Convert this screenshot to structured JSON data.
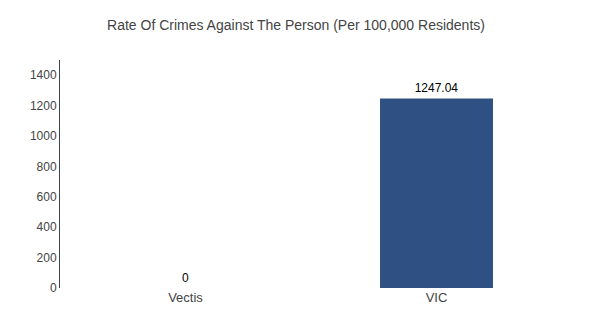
{
  "chart_data": {
    "type": "bar",
    "title": "Rate Of Crimes Against The Person (Per 100,000 Residents)",
    "categories": [
      "Vectis",
      "VIC"
    ],
    "values": [
      0,
      1247.04
    ],
    "color": "#2e5082",
    "ylim": [
      0,
      1500
    ],
    "yticks": [
      0,
      200,
      400,
      600,
      800,
      1000,
      1200,
      1400
    ],
    "grid": false,
    "data_labels": true
  }
}
